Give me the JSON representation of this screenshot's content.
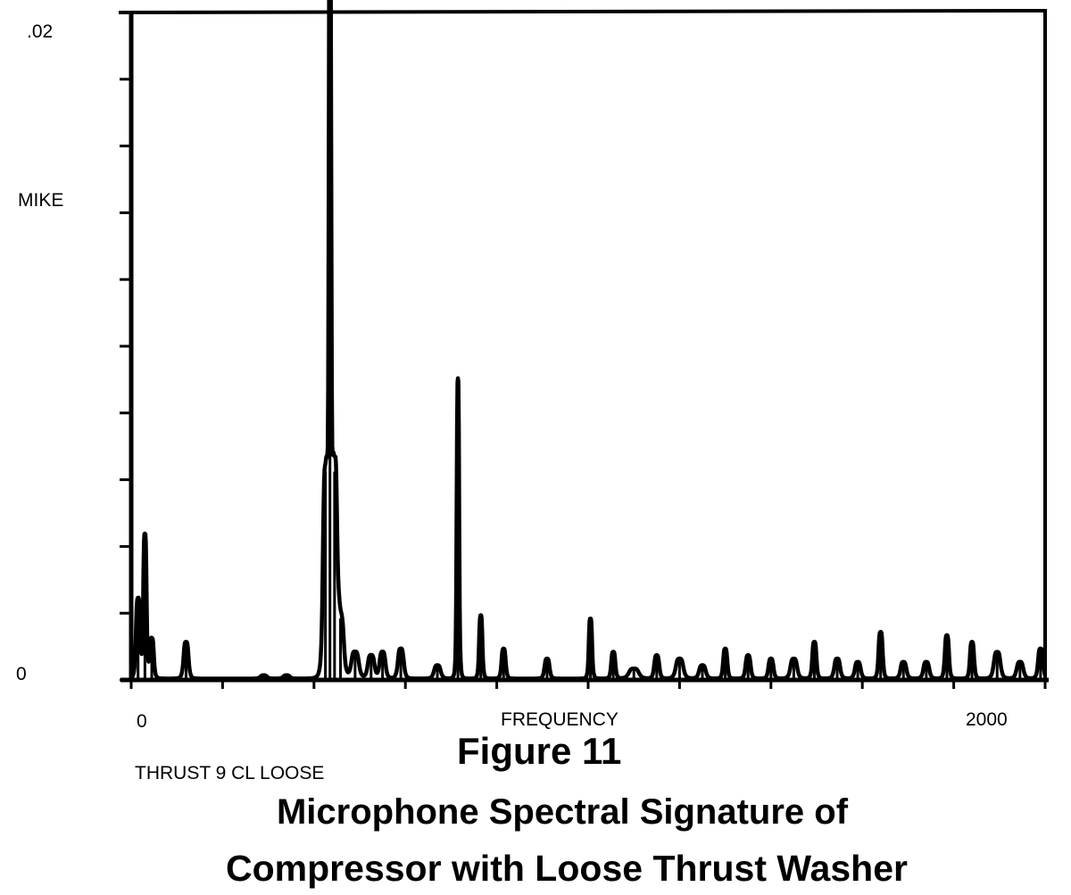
{
  "figure": {
    "number": "Figure 11",
    "caption_line1": "Microphone Spectral Signature of",
    "caption_line2": "Compressor  with Loose Thrust Washer"
  },
  "chart_data": {
    "type": "line",
    "ylabel": "MIKE",
    "xlabel": "FREQUENCY",
    "annotation": "THRUST 9 CL LOOSE",
    "xlim": [
      0,
      2000
    ],
    "ylim": [
      0,
      0.02
    ],
    "x_tick_labels": [
      {
        "value": 0,
        "text": "0"
      },
      {
        "value": 2000,
        "text": "2000"
      }
    ],
    "y_tick_labels": [
      {
        "value": 0,
        "text": "0"
      },
      {
        "value": 0.02,
        "text": ".02"
      }
    ],
    "x_minor_ticks": 10,
    "y_minor_ticks": 10,
    "grid": false,
    "series": [
      {
        "color": "#000000",
        "baseline": 4e-05,
        "peaks": [
          {
            "x": 15,
            "y": 0.0024,
            "w": 5
          },
          {
            "x": 30,
            "y": 0.0043,
            "w": 4
          },
          {
            "x": 45,
            "y": 0.0012,
            "w": 5
          },
          {
            "x": 120,
            "y": 0.0011,
            "w": 6
          },
          {
            "x": 290,
            "y": 0.0001,
            "w": 8
          },
          {
            "x": 340,
            "y": 0.0001,
            "w": 8
          },
          {
            "x": 425,
            "y": 0.0062,
            "w": 6
          },
          {
            "x": 435,
            "y": 0.0225,
            "w": 3
          },
          {
            "x": 445,
            "y": 0.0062,
            "w": 6
          },
          {
            "x": 458,
            "y": 0.0018,
            "w": 8
          },
          {
            "x": 490,
            "y": 0.0008,
            "w": 9
          },
          {
            "x": 525,
            "y": 0.0007,
            "w": 8
          },
          {
            "x": 550,
            "y": 0.0008,
            "w": 7
          },
          {
            "x": 590,
            "y": 0.0009,
            "w": 7
          },
          {
            "x": 670,
            "y": 0.0004,
            "w": 8
          },
          {
            "x": 715,
            "y": 0.009,
            "w": 3
          },
          {
            "x": 765,
            "y": 0.0019,
            "w": 4
          },
          {
            "x": 815,
            "y": 0.0009,
            "w": 5
          },
          {
            "x": 910,
            "y": 0.0006,
            "w": 6
          },
          {
            "x": 1005,
            "y": 0.0018,
            "w": 4
          },
          {
            "x": 1055,
            "y": 0.0008,
            "w": 5
          },
          {
            "x": 1100,
            "y": 0.0003,
            "w": 12
          },
          {
            "x": 1150,
            "y": 0.0007,
            "w": 6
          },
          {
            "x": 1200,
            "y": 0.0006,
            "w": 9
          },
          {
            "x": 1250,
            "y": 0.0004,
            "w": 8
          },
          {
            "x": 1300,
            "y": 0.0009,
            "w": 5
          },
          {
            "x": 1350,
            "y": 0.0007,
            "w": 6
          },
          {
            "x": 1400,
            "y": 0.0006,
            "w": 6
          },
          {
            "x": 1450,
            "y": 0.0006,
            "w": 8
          },
          {
            "x": 1495,
            "y": 0.0011,
            "w": 5
          },
          {
            "x": 1545,
            "y": 0.0006,
            "w": 7
          },
          {
            "x": 1590,
            "y": 0.0005,
            "w": 7
          },
          {
            "x": 1640,
            "y": 0.0014,
            "w": 5
          },
          {
            "x": 1690,
            "y": 0.0005,
            "w": 7
          },
          {
            "x": 1740,
            "y": 0.0005,
            "w": 7
          },
          {
            "x": 1785,
            "y": 0.0013,
            "w": 5
          },
          {
            "x": 1840,
            "y": 0.0011,
            "w": 5
          },
          {
            "x": 1895,
            "y": 0.0008,
            "w": 8
          },
          {
            "x": 1945,
            "y": 0.0005,
            "w": 8
          },
          {
            "x": 1990,
            "y": 0.0009,
            "w": 6
          }
        ]
      }
    ]
  }
}
